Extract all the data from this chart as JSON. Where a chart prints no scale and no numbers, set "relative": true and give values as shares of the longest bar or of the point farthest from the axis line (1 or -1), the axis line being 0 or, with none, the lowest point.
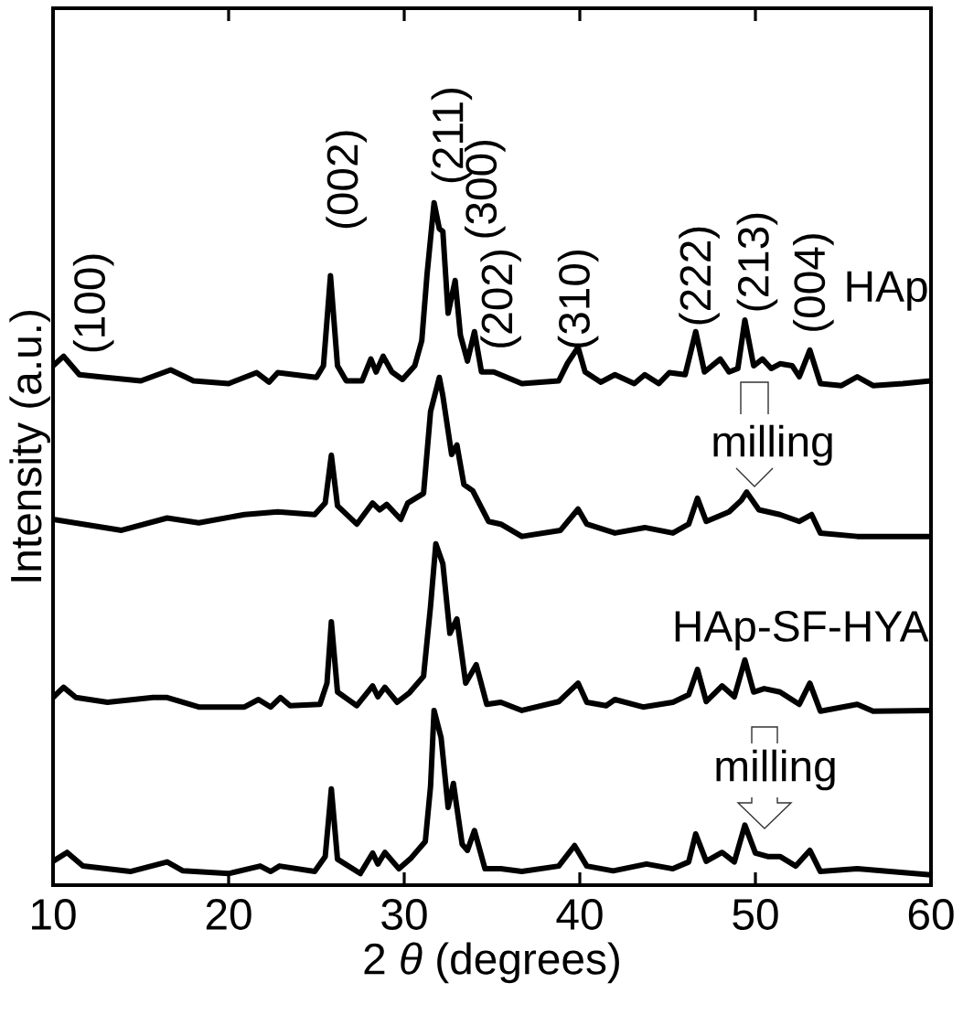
{
  "chart_data": {
    "type": "line",
    "xlabel": "2 *θ* (degrees)",
    "ylabel": "Intensity (a.u.)",
    "relative": true,
    "tick_labels": "x",
    "xlim": [
      10,
      60
    ],
    "xticks": [
      10,
      20,
      30,
      40,
      50,
      60
    ],
    "series": [
      {
        "name": "HAp",
        "color": "#000000",
        "x": [
          10.0,
          10.6,
          11.5,
          13.0,
          15.0,
          16.7,
          18.0,
          20.0,
          21.6,
          22.3,
          22.8,
          25.0,
          25.4,
          25.8,
          26.2,
          26.7,
          27.6,
          28.1,
          28.4,
          28.8,
          29.3,
          29.9,
          30.6,
          31.0,
          31.3,
          31.7,
          32.0,
          32.2,
          32.5,
          32.9,
          33.2,
          33.6,
          34.0,
          34.4,
          35.1,
          36.7,
          38.8,
          39.3,
          39.9,
          40.3,
          41.2,
          42.0,
          43.1,
          43.7,
          44.5,
          45.1,
          46.0,
          46.6,
          47.1,
          48.0,
          48.5,
          49.0,
          49.4,
          49.9,
          50.4,
          50.9,
          51.4,
          52.1,
          52.5,
          53.1,
          53.7,
          54.9,
          55.8,
          56.7,
          58.4,
          60.0
        ],
        "values": [
          0.761,
          0.775,
          0.748,
          0.744,
          0.739,
          0.755,
          0.739,
          0.735,
          0.751,
          0.737,
          0.751,
          0.744,
          0.761,
          0.893,
          0.761,
          0.739,
          0.739,
          0.771,
          0.752,
          0.775,
          0.752,
          0.741,
          0.761,
          0.798,
          0.895,
          1.0,
          0.962,
          0.958,
          0.838,
          0.886,
          0.806,
          0.768,
          0.811,
          0.752,
          0.752,
          0.735,
          0.739,
          0.765,
          0.788,
          0.752,
          0.737,
          0.748,
          0.735,
          0.748,
          0.735,
          0.751,
          0.748,
          0.811,
          0.752,
          0.771,
          0.752,
          0.757,
          0.828,
          0.761,
          0.771,
          0.757,
          0.764,
          0.761,
          0.745,
          0.784,
          0.735,
          0.732,
          0.745,
          0.732,
          0.735,
          0.739
        ]
      },
      {
        "color": "#000000",
        "x": [
          10.0,
          12.2,
          13.9,
          16.5,
          18.3,
          20.9,
          22.8,
          24.9,
          25.5,
          25.85,
          26.2,
          27.3,
          28.2,
          28.6,
          29.0,
          29.8,
          30.2,
          31.1,
          31.5,
          32.0,
          32.2,
          32.7,
          33.0,
          33.4,
          33.9,
          34.8,
          35.5,
          36.7,
          38.9,
          39.9,
          40.4,
          42.0,
          43.7,
          45.3,
          46.2,
          46.7,
          47.2,
          48.5,
          49.2,
          49.5,
          50.2,
          51.4,
          52.5,
          53.2,
          53.7,
          55.8,
          60.0
        ],
        "values": [
          0.536,
          0.527,
          0.52,
          0.538,
          0.531,
          0.543,
          0.547,
          0.543,
          0.56,
          0.63,
          0.556,
          0.529,
          0.56,
          0.55,
          0.558,
          0.536,
          0.56,
          0.574,
          0.694,
          0.744,
          0.717,
          0.631,
          0.645,
          0.587,
          0.578,
          0.533,
          0.529,
          0.511,
          0.52,
          0.551,
          0.529,
          0.516,
          0.524,
          0.516,
          0.529,
          0.567,
          0.533,
          0.547,
          0.564,
          0.576,
          0.55,
          0.543,
          0.533,
          0.543,
          0.516,
          0.511,
          0.511
        ]
      },
      {
        "name": "HAp-SF-HYA",
        "color": "#000000",
        "x": [
          10.0,
          10.6,
          11.3,
          13.1,
          15.7,
          16.5,
          18.3,
          20.9,
          21.7,
          22.4,
          22.95,
          23.5,
          25.2,
          25.6,
          25.85,
          26.2,
          27.3,
          28.2,
          28.5,
          28.9,
          29.6,
          30.3,
          31.1,
          31.5,
          31.8,
          32.2,
          32.6,
          33.0,
          33.5,
          34.1,
          34.7,
          35.5,
          36.7,
          38.8,
          39.9,
          40.4,
          41.5,
          42.0,
          43.6,
          45.3,
          46.2,
          46.7,
          47.2,
          48.1,
          48.8,
          49.4,
          49.9,
          50.5,
          51.4,
          52.5,
          53.1,
          53.7,
          55.8,
          56.7,
          60.0
        ],
        "values": [
          0.275,
          0.29,
          0.275,
          0.268,
          0.275,
          0.275,
          0.261,
          0.261,
          0.272,
          0.261,
          0.275,
          0.263,
          0.265,
          0.296,
          0.386,
          0.283,
          0.263,
          0.292,
          0.276,
          0.29,
          0.268,
          0.282,
          0.306,
          0.409,
          0.5,
          0.471,
          0.369,
          0.39,
          0.296,
          0.323,
          0.265,
          0.268,
          0.256,
          0.269,
          0.296,
          0.268,
          0.263,
          0.272,
          0.261,
          0.268,
          0.279,
          0.316,
          0.269,
          0.292,
          0.276,
          0.33,
          0.283,
          0.288,
          0.283,
          0.265,
          0.296,
          0.255,
          0.265,
          0.255,
          0.256
        ]
      },
      {
        "color": "#000000",
        "x": [
          10.0,
          10.8,
          11.7,
          14.4,
          16.5,
          17.4,
          20.0,
          21.8,
          22.4,
          22.9,
          24.9,
          25.5,
          25.85,
          26.2,
          27.5,
          28.2,
          28.5,
          28.9,
          29.7,
          30.4,
          31.2,
          31.5,
          31.7,
          32.1,
          32.5,
          32.8,
          33.3,
          33.6,
          34.0,
          34.6,
          35.5,
          36.7,
          38.8,
          39.7,
          40.4,
          41.9,
          43.8,
          45.3,
          46.2,
          46.6,
          47.2,
          48.1,
          48.8,
          49.4,
          50.0,
          50.7,
          51.4,
          52.3,
          53.1,
          53.7,
          55.8,
          60.0
        ],
        "values": [
          0.035,
          0.048,
          0.028,
          0.02,
          0.034,
          0.021,
          0.017,
          0.028,
          0.02,
          0.028,
          0.02,
          0.042,
          0.141,
          0.038,
          0.017,
          0.047,
          0.031,
          0.048,
          0.024,
          0.04,
          0.064,
          0.145,
          0.256,
          0.216,
          0.114,
          0.149,
          0.06,
          0.051,
          0.08,
          0.024,
          0.024,
          0.02,
          0.028,
          0.058,
          0.028,
          0.021,
          0.031,
          0.024,
          0.034,
          0.075,
          0.035,
          0.048,
          0.034,
          0.088,
          0.047,
          0.042,
          0.042,
          0.028,
          0.051,
          0.02,
          0.024,
          0.015
        ]
      }
    ],
    "annotations": [
      "(100)",
      "(002)",
      "(211)",
      "(300)",
      "(202)",
      "(310)",
      "(222)",
      "(213)",
      "(004)",
      "milling",
      "milling"
    ]
  }
}
